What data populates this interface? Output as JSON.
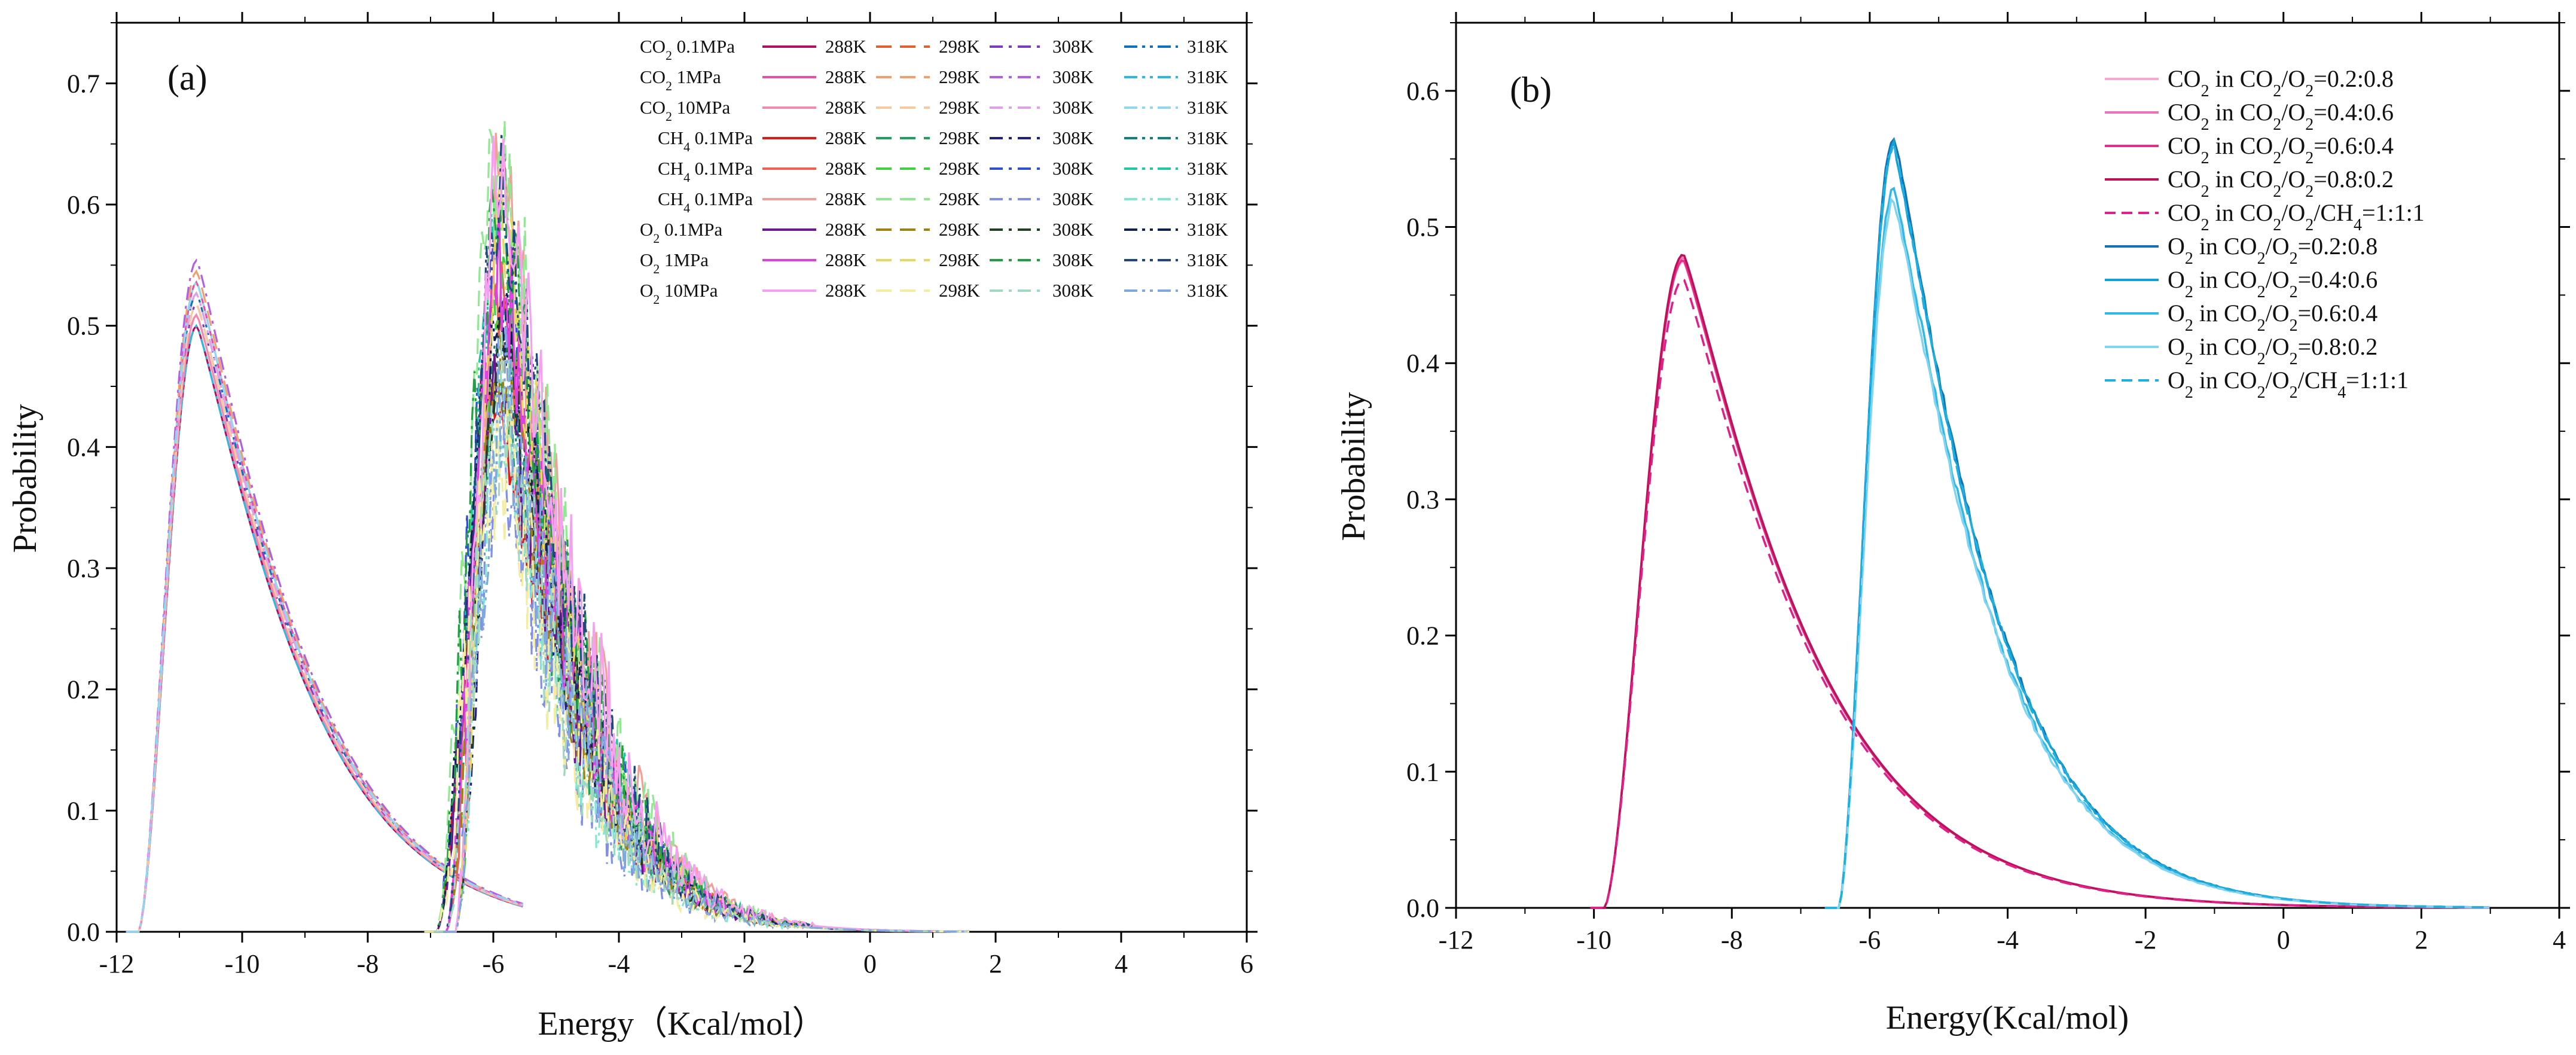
{
  "chart_data": [
    {
      "panel": "(a)",
      "type": "line",
      "xlabel": "Energy（Kcal/mol）",
      "ylabel": "Probability",
      "xlim": [
        -12,
        6
      ],
      "ylim": [
        0,
        0.75
      ],
      "xticks": [
        "-12",
        "-10",
        "-8",
        "-6",
        "-4",
        "-2",
        "0",
        "2",
        "4",
        "6"
      ],
      "yticks": [
        "0.0",
        "0.1",
        "0.2",
        "0.3",
        "0.4",
        "0.5",
        "0.6",
        "0.7"
      ],
      "legend_position": "top-right",
      "legend_groups": [
        {
          "label_main": "CO",
          "label_sub": "2",
          "label_rest": " 0.1MPa",
          "temps": [
            "288K",
            "298K",
            "308K",
            "318K"
          ],
          "colors": [
            "#b0105f",
            "#e06030",
            "#7a3cc0",
            "#1070c0"
          ]
        },
        {
          "label_main": "CO",
          "label_sub": "2",
          "label_rest": " 1MPa",
          "temps": [
            "288K",
            "298K",
            "308K",
            "318K"
          ],
          "colors": [
            "#e84fa8",
            "#f0a070",
            "#b060e0",
            "#30b8e0"
          ]
        },
        {
          "label_main": "CO",
          "label_sub": "2",
          "label_rest": " 10MPa",
          "temps": [
            "288K",
            "298K",
            "308K",
            "318K"
          ],
          "colors": [
            "#f48ab0",
            "#f8c8a0",
            "#e0a0e8",
            "#90d8f0"
          ]
        },
        {
          "label_main": "CH",
          "label_sub": "4",
          "label_rest": " 0.1MPa",
          "temps": [
            "288K",
            "298K",
            "308K",
            "318K"
          ],
          "colors": [
            "#e01818",
            "#20a060",
            "#202080",
            "#108080"
          ]
        },
        {
          "label_main": "CH",
          "label_sub": "4",
          "label_rest": " 0.1MPa",
          "temps": [
            "288K",
            "298K",
            "308K",
            "318K"
          ],
          "colors": [
            "#f06050",
            "#40d040",
            "#3050d0",
            "#20c8a0"
          ]
        },
        {
          "label_main": "CH",
          "label_sub": "4",
          "label_rest": " 0.1MPa",
          "temps": [
            "288K",
            "298K",
            "308K",
            "318K"
          ],
          "colors": [
            "#f0a098",
            "#90e890",
            "#8090e8",
            "#80e8d0"
          ]
        },
        {
          "label_main": "O",
          "label_sub": "2",
          "label_rest": "  0.1MPa",
          "temps": [
            "288K",
            "298K",
            "308K",
            "318K"
          ],
          "colors": [
            "#6a1890",
            "#a08010",
            "#204020",
            "#102050"
          ]
        },
        {
          "label_main": "O",
          "label_sub": "2",
          "label_rest": "  1MPa",
          "temps": [
            "288K",
            "298K",
            "308K",
            "318K"
          ],
          "colors": [
            "#e040e0",
            "#e8d860",
            "#20a040",
            "#204880"
          ]
        },
        {
          "label_main": "O",
          "label_sub": "2",
          "label_rest": "  10MPa",
          "temps": [
            "288K",
            "298K",
            "308K",
            "318K"
          ],
          "colors": [
            "#f8a0f0",
            "#f4eca0",
            "#a0d8c0",
            "#80a8e0"
          ]
        }
      ],
      "series_summary": {
        "CO2_peak": {
          "x": -10.7,
          "y_range": [
            0.5,
            0.565
          ]
        },
        "CH4_O2_peak": {
          "x": -5.8,
          "y_range": [
            0.38,
            0.675
          ]
        }
      }
    },
    {
      "panel": "(b)",
      "type": "line",
      "xlabel": "Energy(Kcal/mol)",
      "ylabel": "Probability",
      "xlim": [
        -12,
        4
      ],
      "ylim": [
        0,
        0.65
      ],
      "xticks": [
        "-12",
        "-10",
        "-8",
        "-6",
        "-4",
        "-2",
        "0",
        "2",
        "4"
      ],
      "yticks": [
        "0.0",
        "0.1",
        "0.2",
        "0.3",
        "0.4",
        "0.5",
        "0.6"
      ],
      "legend_position": "top-right",
      "series": [
        {
          "pre": "CO",
          "s1": "2",
          "mid": " in CO",
          "s2": "2",
          "mid2": "/O",
          "s3": "2",
          "post": "=0.2:0.8",
          "color": "#f8a8d8",
          "dash": "solid",
          "peak": [
            -8.7,
            0.475
          ]
        },
        {
          "pre": "CO",
          "s1": "2",
          "mid": " in CO",
          "s2": "2",
          "mid2": "/O",
          "s3": "2",
          "post": "=0.4:0.6",
          "color": "#f070b8",
          "dash": "solid",
          "peak": [
            -8.7,
            0.478
          ]
        },
        {
          "pre": "CO",
          "s1": "2",
          "mid": " in CO",
          "s2": "2",
          "mid2": "/O",
          "s3": "2",
          "post": "=0.6:0.4",
          "color": "#e0308a",
          "dash": "solid",
          "peak": [
            -8.7,
            0.476
          ]
        },
        {
          "pre": "CO",
          "s1": "2",
          "mid": " in CO",
          "s2": "2",
          "mid2": "/O",
          "s3": "2",
          "post": "=0.8:0.2",
          "color": "#c0105a",
          "dash": "solid",
          "peak": [
            -8.7,
            0.48
          ]
        },
        {
          "pre": "CO",
          "s1": "2",
          "mid": " in CO",
          "s2": "2",
          "mid2": "/O",
          "s3": "2",
          "post": "/CH",
          "s4": "4",
          "post2": "=1:1:1",
          "color": "#e0208a",
          "dash": "dashed",
          "peak": [
            -8.7,
            0.462
          ]
        },
        {
          "pre": "O",
          "s1": "2",
          "mid": " in CO",
          "s2": "2",
          "mid2": "/O",
          "s3": "2",
          "post": "=0.2:0.8",
          "color": "#1070b8",
          "dash": "solid",
          "peak": [
            -5.65,
            0.565
          ]
        },
        {
          "pre": "O",
          "s1": "2",
          "mid": " in CO",
          "s2": "2",
          "mid2": "/O",
          "s3": "2",
          "post": "=0.4:0.6",
          "color": "#10a0d8",
          "dash": "solid",
          "peak": [
            -5.65,
            0.56
          ]
        },
        {
          "pre": "O",
          "s1": "2",
          "mid": " in CO",
          "s2": "2",
          "mid2": "/O",
          "s3": "2",
          "post": "=0.6:0.4",
          "color": "#30b8e8",
          "dash": "solid",
          "peak": [
            -5.65,
            0.528
          ]
        },
        {
          "pre": "O",
          "s1": "2",
          "mid": " in CO",
          "s2": "2",
          "mid2": "/O",
          "s3": "2",
          "post": "=0.8:0.2",
          "color": "#80d4f0",
          "dash": "solid",
          "peak": [
            -5.65,
            0.52
          ]
        },
        {
          "pre": "O",
          "s1": "2",
          "mid": " in CO",
          "s2": "2",
          "mid2": "/O",
          "s3": "2",
          "post": "/CH",
          "s4": "4",
          "post2": "=1:1:1",
          "color": "#20b0e0",
          "dash": "dashed",
          "peak": [
            -5.65,
            0.56
          ]
        }
      ]
    }
  ]
}
